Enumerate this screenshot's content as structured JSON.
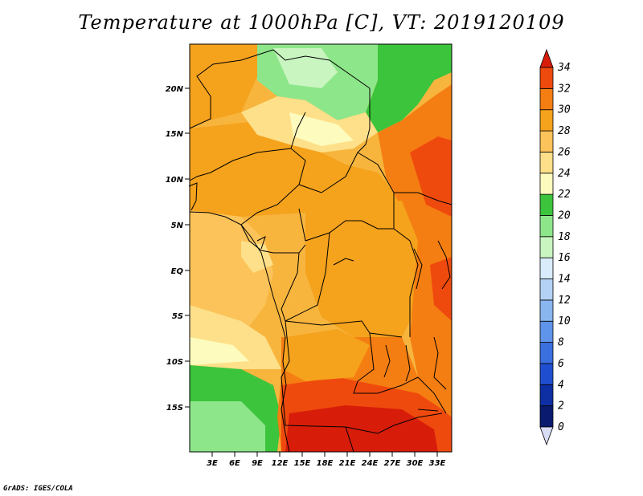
{
  "title": "Temperature at 1000hPa [C], VT: 2019120109",
  "credit": "GrADS: IGES/COLA",
  "map": {
    "lat_labels": [
      "20N",
      "15N",
      "10N",
      "5N",
      "EQ",
      "5S",
      "10S",
      "15S"
    ],
    "lon_labels": [
      "3E",
      "6E",
      "9E",
      "12E",
      "15E",
      "18E",
      "21E",
      "24E",
      "27E",
      "30E",
      "33E"
    ]
  },
  "colorbar": {
    "labels": [
      "0",
      "2",
      "4",
      "6",
      "8",
      "10",
      "12",
      "14",
      "16",
      "18",
      "20",
      "22",
      "24",
      "26",
      "28",
      "30",
      "32",
      "34"
    ],
    "colors": [
      "#0a1a6e",
      "#0d2fa3",
      "#1f4fd0",
      "#3a6fe0",
      "#5e95ea",
      "#8ab6f0",
      "#b3d2f6",
      "#d9ecfb",
      "#c8f5c0",
      "#8ee68a",
      "#3cc43c",
      "#fdfbbd",
      "#fde089",
      "#fcc35a",
      "#f5a21c",
      "#f57e12",
      "#ef4a0e",
      "#d71d0a"
    ],
    "under_color": "#d8dcf5",
    "over_color": "#d71d0a"
  }
}
